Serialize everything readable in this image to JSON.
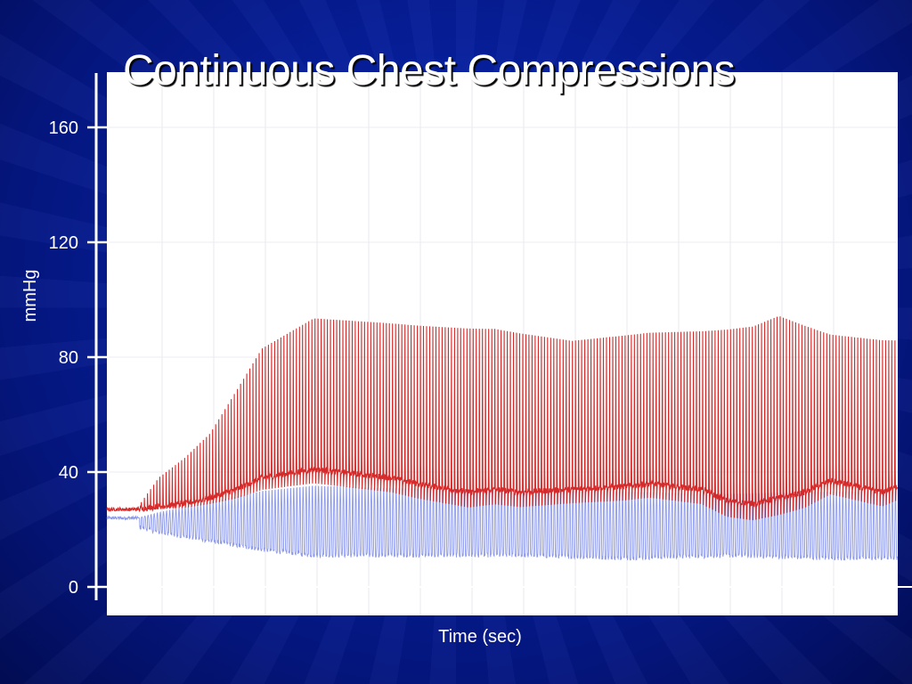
{
  "title": "Continuous Chest Compressions",
  "chart_data": {
    "type": "line",
    "title": "Continuous Chest Compressions",
    "xlabel": "Time (sec)",
    "ylabel": "mmHg",
    "ylim": [
      0,
      170
    ],
    "yticks": [
      0,
      40,
      80,
      120,
      160
    ],
    "xlim": [
      0,
      153
    ],
    "grid": true,
    "series": [
      {
        "color": "#d42020",
        "description": "compression waveform, ~1.7 compressions/sec; baseline 27 mmHg rising to ~40, peaks rising from ~40 to ~95-120",
        "baseline_x": [
          0,
          6,
          10,
          15,
          20,
          25,
          30,
          40,
          55,
          60,
          70,
          75,
          80,
          90,
          100,
          105,
          115,
          120,
          125,
          135,
          140,
          150,
          153
        ],
        "baseline_y": [
          27,
          27,
          28,
          29,
          31,
          34,
          38,
          41,
          38,
          36,
          33,
          34,
          33,
          34,
          35,
          36,
          34,
          30,
          29,
          33,
          37,
          33,
          35
        ],
        "peak_x": [
          0,
          6,
          10,
          15,
          20,
          25,
          30,
          40,
          60,
          75,
          90,
          105,
          115,
          125,
          130,
          140,
          153
        ],
        "peak_y": [
          28,
          28,
          40,
          48,
          58,
          75,
          92,
          104,
          102,
          101,
          96,
          99,
          100,
          103,
          107,
          98,
          96
        ]
      },
      {
        "color": "#6f7fe6",
        "description": "second pressure waveform; baseline ~24 falling to ~13-16 mmHg, peaks ~33-37 mmHg",
        "baseline_x": [
          0,
          6,
          10,
          20,
          30,
          40,
          60,
          80,
          100,
          120,
          140,
          153
        ],
        "baseline_y": [
          24,
          24,
          22,
          19,
          16,
          14,
          14,
          14,
          13,
          14,
          13,
          13
        ],
        "peak_x": [
          0,
          6,
          10,
          20,
          30,
          40,
          60,
          80,
          100,
          120,
          140,
          153
        ],
        "peak_y": [
          24,
          24,
          26,
          30,
          34,
          36,
          35,
          34,
          34,
          33,
          34,
          34
        ]
      }
    ]
  }
}
